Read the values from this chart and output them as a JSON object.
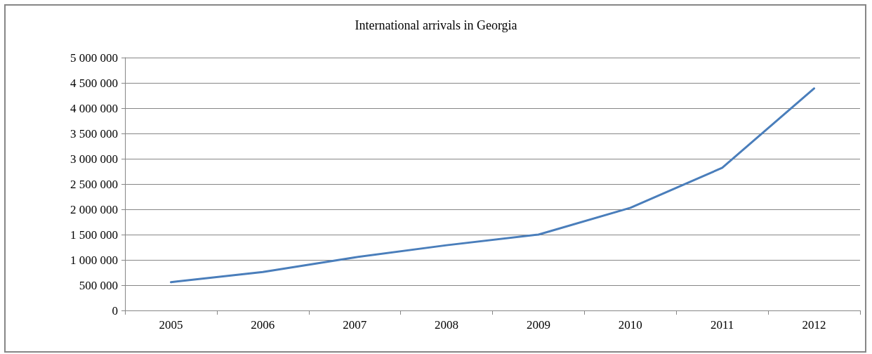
{
  "chart_data": {
    "type": "line",
    "title": "International arrivals in Georgia",
    "categories": [
      "2005",
      "2006",
      "2007",
      "2008",
      "2009",
      "2010",
      "2011",
      "2012"
    ],
    "series": [
      {
        "color": "#4a7ebb",
        "values": [
          560000,
          760000,
          1050000,
          1290000,
          1500000,
          2030000,
          2820000,
          4390000
        ]
      }
    ],
    "ylim": [
      0,
      5000000
    ],
    "yticks": [
      {
        "value": 0,
        "label": "0"
      },
      {
        "value": 500000,
        "label": "500 000"
      },
      {
        "value": 1000000,
        "label": "1 000 000"
      },
      {
        "value": 1500000,
        "label": "1 500 000"
      },
      {
        "value": 2000000,
        "label": "2 000 000"
      },
      {
        "value": 2500000,
        "label": "2 500 000"
      },
      {
        "value": 3000000,
        "label": "3 000 000"
      },
      {
        "value": 3500000,
        "label": "3 500 000"
      },
      {
        "value": 4000000,
        "label": "4 000 000"
      },
      {
        "value": 4500000,
        "label": "4 500 000"
      },
      {
        "value": 5000000,
        "label": "5 000 000"
      }
    ],
    "grid": "y",
    "marker": "none",
    "line_style": "solid"
  }
}
